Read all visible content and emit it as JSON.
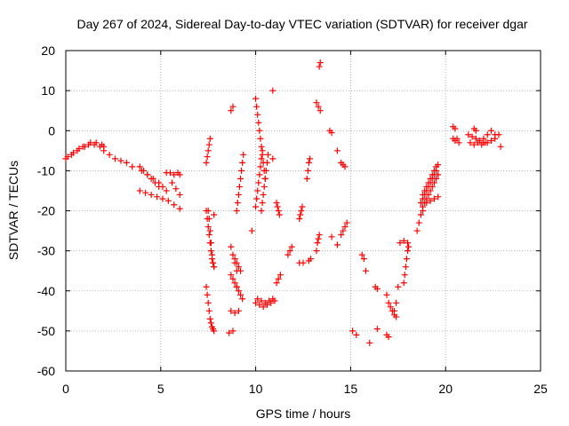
{
  "chart_data": {
    "type": "scatter",
    "title": "Day 267 of 2024, Sidereal Day-to-day VTEC variation (SDTVAR) for receiver dgar",
    "xlabel": "GPS time / hours",
    "ylabel": "SDTVAR / TECUs",
    "xlim": [
      0,
      25
    ],
    "ylim": [
      -60,
      20
    ],
    "xticks": [
      0,
      5,
      10,
      15,
      20,
      25
    ],
    "yticks": [
      -60,
      -50,
      -40,
      -30,
      -20,
      -10,
      0,
      10,
      20
    ],
    "xtick_labels": [
      "0",
      "5",
      "10",
      "15",
      "20",
      "25"
    ],
    "ytick_labels": [
      "-60",
      "-50",
      "-40",
      "-30",
      "-20",
      "-10",
      "0",
      "10",
      "20"
    ],
    "grid": true,
    "marker": "+",
    "marker_color": "#ff0000",
    "segments": [
      {
        "x": [
          0.0,
          0.3,
          0.6,
          0.9,
          1.2,
          1.5,
          1.8,
          2.0
        ],
        "y": [
          -7,
          -6,
          -5,
          -4,
          -3.5,
          -3.5,
          -4,
          -4
        ]
      },
      {
        "x": [
          0.1,
          0.4,
          0.7,
          1.0,
          1.3,
          1.6,
          1.9
        ],
        "y": [
          -6.5,
          -5.5,
          -4.5,
          -4,
          -3,
          -3,
          -3.5
        ]
      },
      {
        "x": [
          2.0,
          2.3,
          2.6,
          2.9,
          3.2,
          3.5
        ],
        "y": [
          -5,
          -6,
          -7,
          -7.5,
          -8,
          -9
        ]
      },
      {
        "x": [
          3.9,
          4.1,
          4.3,
          4.5,
          4.7,
          4.9
        ],
        "y": [
          -9,
          -10,
          -11,
          -12,
          -13,
          -14
        ]
      },
      {
        "x": [
          4.0,
          4.3,
          4.6,
          4.9,
          5.1,
          5.3
        ],
        "y": [
          -10,
          -11,
          -12,
          -13,
          -14,
          -15
        ]
      },
      {
        "x": [
          3.9,
          4.2,
          4.5,
          4.8,
          5.1,
          5.4,
          5.7,
          6.0
        ],
        "y": [
          -15,
          -15.5,
          -16,
          -16.5,
          -17,
          -17.5,
          -18.5,
          -19.5
        ]
      },
      {
        "x": [
          5.3,
          5.5,
          5.7,
          5.9,
          6.0
        ],
        "y": [
          -10.5,
          -10.5,
          -11,
          -10.5,
          -11
        ]
      },
      {
        "x": [
          5.6,
          5.8,
          6.0
        ],
        "y": [
          -13,
          -14.5,
          -16
        ]
      },
      {
        "x": [
          7.4,
          7.45,
          7.5,
          7.55,
          7.6
        ],
        "y": [
          -8,
          -6.5,
          -5,
          -3.5,
          -2
        ]
      },
      {
        "x": [
          7.4,
          7.45,
          7.5,
          7.55,
          7.6,
          7.65,
          7.7,
          7.75,
          7.8
        ],
        "y": [
          -20,
          -22,
          -24,
          -26,
          -28,
          -30,
          -32,
          -33,
          -34
        ]
      },
      {
        "x": [
          7.5,
          7.55,
          7.6,
          7.65,
          7.7,
          7.75,
          7.8
        ],
        "y": [
          -20,
          -22,
          -25,
          -28,
          -31,
          -33,
          -34
        ]
      },
      {
        "x": [
          7.4,
          7.45,
          7.5,
          7.55,
          7.6,
          7.65,
          7.7,
          7.75,
          7.8
        ],
        "y": [
          -39,
          -41,
          -43,
          -45,
          -47,
          -48,
          -49,
          -49.5,
          -50
        ]
      },
      {
        "x": [
          7.8
        ],
        "y": [
          -21
        ]
      },
      {
        "x": [
          8.7,
          8.8
        ],
        "y": [
          5,
          6
        ]
      },
      {
        "x": [
          8.7,
          8.8,
          8.9,
          9.0
        ],
        "y": [
          -29,
          -31,
          -33,
          -35
        ]
      },
      {
        "x": [
          8.9,
          9.0,
          9.1,
          9.2
        ],
        "y": [
          -32,
          -33,
          -34,
          -35
        ]
      },
      {
        "x": [
          8.7,
          8.8,
          8.9,
          9.0
        ],
        "y": [
          -36,
          -37,
          -38,
          -39
        ]
      },
      {
        "x": [
          9.0,
          9.1,
          9.2,
          9.3
        ],
        "y": [
          -39,
          -40,
          -41,
          -42
        ]
      },
      {
        "x": [
          8.7,
          8.9,
          9.1
        ],
        "y": [
          -45,
          -45.5,
          -45
        ]
      },
      {
        "x": [
          8.6,
          8.8
        ],
        "y": [
          -50.5,
          -50
        ]
      },
      {
        "x": [
          9.0,
          9.05,
          9.1,
          9.15,
          9.2,
          9.25,
          9.3,
          9.35
        ],
        "y": [
          -20,
          -18,
          -16,
          -14,
          -12,
          -10,
          -8,
          -6
        ]
      },
      {
        "x": [
          9.8
        ],
        "y": [
          -25
        ]
      },
      {
        "x": [
          10.0,
          10.05,
          10.1,
          10.15,
          10.2,
          10.25,
          10.3,
          10.35,
          10.4,
          10.45,
          10.5
        ],
        "y": [
          8,
          6,
          4,
          2,
          0,
          -2,
          -4,
          -6,
          -8,
          -10,
          -12
        ]
      },
      {
        "x": [
          10.0,
          10.05,
          10.1,
          10.15,
          10.2,
          10.25,
          10.3,
          10.35
        ],
        "y": [
          -19,
          -17,
          -15,
          -13,
          -11,
          -9,
          -7,
          -5
        ]
      },
      {
        "x": [
          10.3,
          10.35,
          10.4,
          10.45,
          10.5,
          10.55,
          10.6,
          10.65
        ],
        "y": [
          -20,
          -18,
          -16,
          -14,
          -12,
          -10,
          -8,
          -6
        ]
      },
      {
        "x": [
          10.0,
          10.2,
          10.4,
          10.6,
          10.8,
          11.0
        ],
        "y": [
          -43,
          -43.5,
          -44,
          -43.5,
          -43,
          -42.5
        ]
      },
      {
        "x": [
          10.1,
          10.3,
          10.5,
          10.7,
          10.9
        ],
        "y": [
          -42,
          -42.5,
          -43,
          -42.5,
          -42
        ]
      },
      {
        "x": [
          10.9
        ],
        "y": [
          10
        ]
      },
      {
        "x": [
          10.9
        ],
        "y": [
          -7
        ]
      },
      {
        "x": [
          11.1,
          11.15,
          11.2,
          11.25
        ],
        "y": [
          -18,
          -19,
          -20,
          -21
        ]
      },
      {
        "x": [
          11.1,
          11.2,
          11.3
        ],
        "y": [
          -38,
          -37,
          -36
        ]
      },
      {
        "x": [
          11.7,
          11.8,
          11.9
        ],
        "y": [
          -31,
          -30,
          -29
        ]
      },
      {
        "x": [
          12.3,
          12.35,
          12.4,
          12.45
        ],
        "y": [
          -22,
          -21,
          -20,
          -19
        ]
      },
      {
        "x": [
          12.3,
          12.5
        ],
        "y": [
          -33,
          -33
        ]
      },
      {
        "x": [
          12.7,
          12.75,
          12.8,
          12.85
        ],
        "y": [
          -12,
          -10,
          -8,
          -7
        ]
      },
      {
        "x": [
          12.8,
          12.9
        ],
        "y": [
          -32.5,
          -32
        ]
      },
      {
        "x": [
          13.2,
          13.25,
          13.3,
          13.35
        ],
        "y": [
          -30,
          -28,
          -27,
          -26
        ]
      },
      {
        "x": [
          13.2,
          13.3,
          13.4
        ],
        "y": [
          7,
          6,
          5
        ]
      },
      {
        "x": [
          13.35,
          13.4
        ],
        "y": [
          16,
          17
        ]
      },
      {
        "x": [
          13.9,
          14.0
        ],
        "y": [
          0,
          -0.5
        ]
      },
      {
        "x": [
          14.0
        ],
        "y": [
          -26.5
        ]
      },
      {
        "x": [
          14.3
        ],
        "y": [
          -5
        ]
      },
      {
        "x": [
          14.3
        ],
        "y": [
          -28.5
        ]
      },
      {
        "x": [
          14.5,
          14.6,
          14.7
        ],
        "y": [
          -8,
          -8.5,
          -9
        ]
      },
      {
        "x": [
          14.5,
          14.6,
          14.7,
          14.8
        ],
        "y": [
          -26,
          -25,
          -24,
          -23
        ]
      },
      {
        "x": [
          15.1,
          15.3
        ],
        "y": [
          -50,
          -51
        ]
      },
      {
        "x": [
          15.6,
          15.7
        ],
        "y": [
          -31,
          -32
        ]
      },
      {
        "x": [
          15.8
        ],
        "y": [
          -35
        ]
      },
      {
        "x": [
          16.0
        ],
        "y": [
          -53
        ]
      },
      {
        "x": [
          16.3,
          16.4
        ],
        "y": [
          -39,
          -39.5
        ]
      },
      {
        "x": [
          16.4
        ],
        "y": [
          -49.5
        ]
      },
      {
        "x": [
          16.9,
          17.0
        ],
        "y": [
          -51,
          -51.5
        ]
      },
      {
        "x": [
          16.9
        ],
        "y": [
          -41
        ]
      },
      {
        "x": [
          17.0,
          17.1,
          17.2,
          17.3,
          17.4
        ],
        "y": [
          -43,
          -44,
          -45,
          -46,
          -46.5
        ]
      },
      {
        "x": [
          17.3,
          17.4,
          17.5
        ],
        "y": [
          -45,
          -43,
          -39
        ]
      },
      {
        "x": [
          17.6,
          17.8,
          18.0
        ],
        "y": [
          -28,
          -27.5,
          -28
        ]
      },
      {
        "x": [
          17.8,
          17.85,
          17.9,
          17.95,
          18.0,
          18.05
        ],
        "y": [
          -38,
          -36,
          -34,
          -32,
          -30,
          -29
        ]
      },
      {
        "x": [
          18.5,
          18.6,
          18.7,
          18.8
        ],
        "y": [
          -25,
          -23,
          -21,
          -20
        ]
      },
      {
        "x": [
          18.7,
          18.8,
          18.9,
          19.0,
          19.1,
          19.2,
          19.3,
          19.4,
          19.5
        ],
        "y": [
          -18,
          -17,
          -16,
          -15,
          -14,
          -13,
          -12,
          -11,
          -10
        ]
      },
      {
        "x": [
          18.8,
          18.9,
          19.0,
          19.1,
          19.2,
          19.3,
          19.4,
          19.5,
          19.6
        ],
        "y": [
          -19,
          -18,
          -17,
          -16,
          -15,
          -14,
          -13,
          -12,
          -11
        ]
      },
      {
        "x": [
          18.8,
          18.9,
          19.0,
          19.1,
          19.2,
          19.3,
          19.4,
          19.5,
          19.6
        ],
        "y": [
          -16,
          -15,
          -14,
          -13,
          -12,
          -11,
          -10,
          -9,
          -8.5
        ]
      },
      {
        "x": [
          19.0,
          19.2,
          19.4,
          19.6
        ],
        "y": [
          -18,
          -17.5,
          -17,
          -16.5
        ]
      },
      {
        "x": [
          20.4,
          20.5
        ],
        "y": [
          1,
          0.5
        ]
      },
      {
        "x": [
          20.4,
          20.5,
          20.6,
          20.7
        ],
        "y": [
          -2,
          -2.5,
          -2,
          -3
        ]
      },
      {
        "x": [
          21.2,
          21.4,
          21.6,
          21.8,
          22.0
        ],
        "y": [
          -1,
          -1.5,
          -2,
          -2.5,
          -3
        ]
      },
      {
        "x": [
          21.3,
          21.5,
          21.7,
          21.9,
          22.1
        ],
        "y": [
          -3,
          -3.5,
          -3,
          -3.5,
          -3
        ]
      },
      {
        "x": [
          21.5,
          21.6
        ],
        "y": [
          0.5,
          0
        ]
      },
      {
        "x": [
          22.0,
          22.2,
          22.4,
          22.6,
          22.8
        ],
        "y": [
          -2,
          -1,
          0,
          -1,
          -1
        ]
      },
      {
        "x": [
          22.2,
          22.4,
          22.6
        ],
        "y": [
          -3,
          -2.5,
          -2
        ]
      },
      {
        "x": [
          22.9
        ],
        "y": [
          -4
        ]
      }
    ]
  }
}
